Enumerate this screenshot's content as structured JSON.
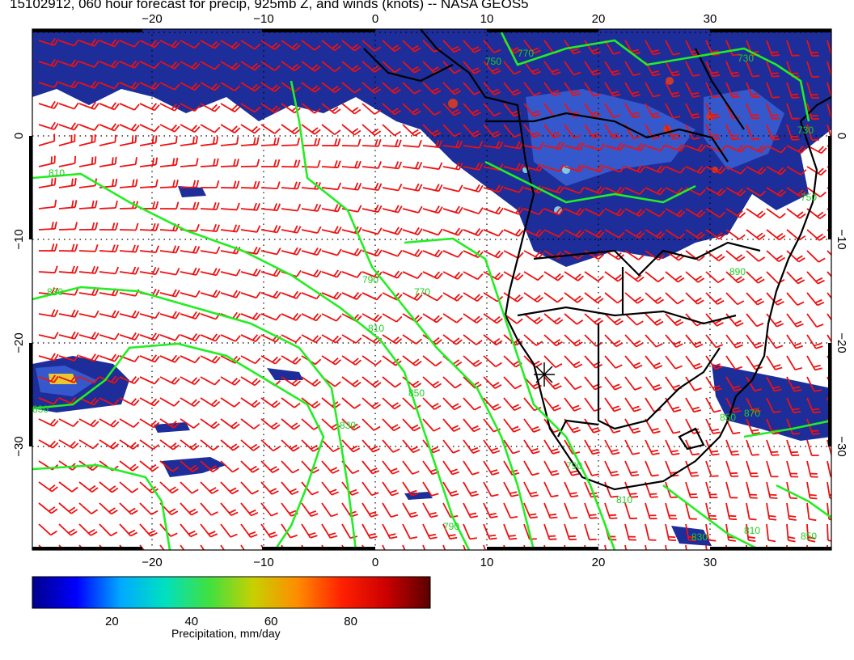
{
  "title": "15102912, 060 hour forecast for precip, 925mb Z, and winds (knots) -- NASA GEOS5",
  "colors": {
    "precip_dark": "#1d2d9a",
    "precip_mid": "#3c64d8",
    "precip_light": "#7fc8e8",
    "contour": "#22ee22",
    "barb": "#ee1111",
    "land_border": "#000000"
  },
  "map": {
    "longitude_ticks": [
      "−20",
      "−10",
      "0",
      "10",
      "20",
      "30"
    ],
    "latitude_ticks": [
      "0",
      "−10",
      "−20",
      "−30"
    ],
    "contour_labels": [
      "810",
      "830",
      "790",
      "770",
      "810",
      "830",
      "850",
      "790",
      "810",
      "730",
      "750",
      "830",
      "850",
      "870",
      "890",
      "810",
      "830",
      "850",
      "790",
      "770",
      "750",
      "730"
    ],
    "marker": "station-star"
  },
  "colorbar": {
    "ticks": [
      "20",
      "40",
      "60",
      "80"
    ],
    "label": "Precipitation, mm/day",
    "min": 0,
    "max": 100,
    "stops": [
      "#00008b",
      "#0000ff",
      "#00aaff",
      "#00e0c0",
      "#40e040",
      "#c8d000",
      "#ff8c00",
      "#ff2000",
      "#cc0000",
      "#5a0000"
    ]
  }
}
